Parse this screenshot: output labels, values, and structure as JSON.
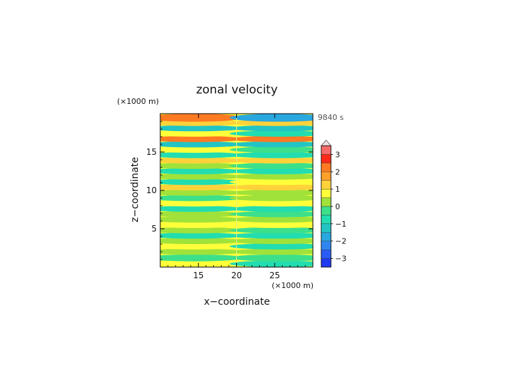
{
  "chart_data": {
    "type": "heatmap",
    "title": "zonal velocity",
    "xlabel": "x−coordinate",
    "ylabel": "z−coordinate",
    "x_unit": "(×1000 m)",
    "y_unit": "(×1000 m)",
    "time_label": "9840 s",
    "xlim": [
      10,
      30
    ],
    "ylim": [
      0,
      20
    ],
    "x_ticks": [
      15,
      20,
      25
    ],
    "x_tick_labels": [
      "15",
      "20",
      "25"
    ],
    "y_ticks": [
      5,
      10,
      15
    ],
    "y_tick_labels": [
      "5",
      "10",
      "15"
    ],
    "colorbar": {
      "levels": [
        -3.5,
        -3,
        -2.5,
        -2,
        -1.5,
        -1,
        -0.5,
        0,
        0.5,
        1,
        1.5,
        2,
        2.5,
        3,
        3.5
      ],
      "colors": [
        "#1c1cd0",
        "#1f3af0",
        "#2a5cf5",
        "#2f86f0",
        "#29a7df",
        "#22c4c4",
        "#22ddb0",
        "#3ce08a",
        "#a0e23a",
        "#ffff3a",
        "#ffd23a",
        "#ffa02a",
        "#ff7a22",
        "#ff2a1a",
        "#f56a6a",
        "#f5b3b3"
      ],
      "tick_values": [
        3,
        2,
        1,
        0,
        -1,
        -2,
        -3
      ],
      "tick_labels": [
        "3",
        "2",
        "1",
        "0",
        "−1",
        "−2",
        "−3"
      ],
      "extend": "max"
    },
    "field_bands": [
      {
        "z": 0.4,
        "u": 0.7
      },
      {
        "z": 1.2,
        "u": 0.0
      },
      {
        "z": 2.0,
        "u": 0.3
      },
      {
        "z": 2.7,
        "u": 0.7
      },
      {
        "z": 3.4,
        "u": 0.2
      },
      {
        "z": 4.1,
        "u": -0.8
      },
      {
        "z": 4.8,
        "u": 0.3
      },
      {
        "z": 5.5,
        "u": 1.0
      },
      {
        "z": 6.2,
        "u": 0.1
      },
      {
        "z": 6.9,
        "u": 0.4
      },
      {
        "z": 7.6,
        "u": -0.7
      },
      {
        "z": 8.3,
        "u": 0.6
      },
      {
        "z": 9.0,
        "u": -0.3
      },
      {
        "z": 9.7,
        "u": 0.5
      },
      {
        "z": 10.4,
        "u": 1.1
      },
      {
        "z": 11.1,
        "u": -0.8
      },
      {
        "z": 11.8,
        "u": 0.3
      },
      {
        "z": 12.5,
        "u": -0.9
      },
      {
        "z": 13.2,
        "u": 0.5
      },
      {
        "z": 13.9,
        "u": 1.2
      },
      {
        "z": 14.6,
        "u": -0.5
      },
      {
        "z": 15.3,
        "u": 0.6
      },
      {
        "z": 16.0,
        "u": -1.2
      },
      {
        "z": 16.7,
        "u": 2.2
      },
      {
        "z": 17.4,
        "u": 1.0
      },
      {
        "z": 18.1,
        "u": -1.3
      },
      {
        "z": 18.8,
        "u": 1.5
      },
      {
        "z": 19.5,
        "u": 2.4
      }
    ]
  }
}
